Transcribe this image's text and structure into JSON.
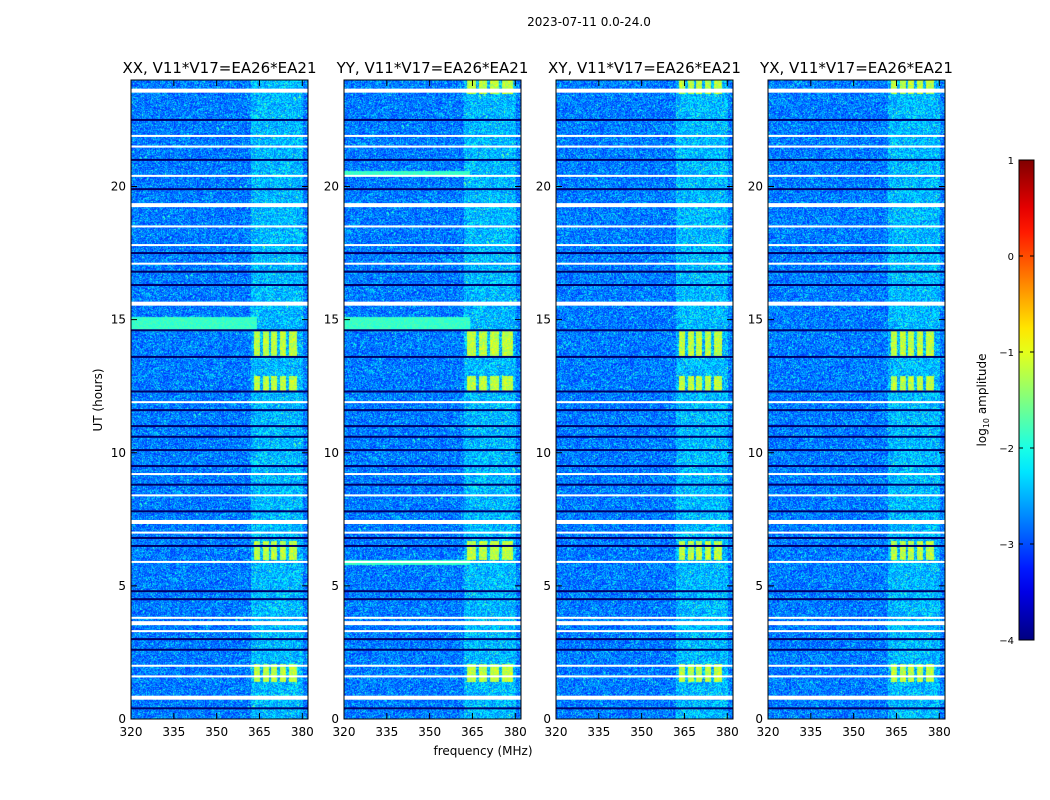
{
  "figure": {
    "suptitle": "2023-07-11 0.0-24.0",
    "ylabel": "UT (hours)",
    "xlabel": "frequency (MHz)"
  },
  "colorbar": {
    "label_main": "log",
    "label_sub": "10",
    "label_rest": " amplitude",
    "range": [
      -4,
      1
    ],
    "ticks": [
      1,
      0,
      -1,
      -2,
      -3,
      -4
    ],
    "tick_labels": [
      "1",
      "0",
      "−1",
      "−2",
      "−3",
      "−4"
    ],
    "colormap": [
      "#00007f",
      "#0000ff",
      "#007fff",
      "#00ffff",
      "#7fff7f",
      "#ffff00",
      "#ff7f00",
      "#ff0000",
      "#7f0000"
    ]
  },
  "chart_data": [
    {
      "type": "heatmap",
      "title": "XX, V11*V17=EA26*EA21",
      "xlabel": "",
      "ylabel": "UT (hours)",
      "xlim": [
        320,
        382
      ],
      "ylim": [
        0,
        24
      ],
      "xticks": [
        320,
        335,
        350,
        365,
        380
      ],
      "yticks": [
        0,
        5,
        10,
        15,
        20
      ],
      "flagged_ut": [
        0.8,
        1.6,
        2.0,
        3.3,
        3.6,
        3.8,
        5.9,
        7.0,
        7.4,
        8.4,
        9.2,
        11.9,
        15.6,
        17.1,
        17.8,
        18.5,
        19.3,
        20.4,
        21.5,
        21.9,
        23.6
      ],
      "dark_ut": [
        0.4,
        2.6,
        3.0,
        4.5,
        4.8,
        6.5,
        6.8,
        7.8,
        8.8,
        9.5,
        10.1,
        10.6,
        11.0,
        11.6,
        12.3,
        13.6,
        14.6,
        16.3,
        16.8,
        17.5,
        19.9,
        21.0,
        22.5
      ],
      "bright_ut_ranges": [
        [
          14.6,
          15.1
        ]
      ],
      "band_mhz": [
        [
          363,
          365
        ],
        [
          366,
          368
        ],
        [
          369,
          371
        ],
        [
          372,
          374
        ],
        [
          375,
          378
        ]
      ],
      "band_hot_ut": [
        [
          1.4,
          2.1
        ],
        [
          6.0,
          6.7
        ],
        [
          12.3,
          12.9
        ],
        [
          13.6,
          14.6
        ]
      ]
    },
    {
      "type": "heatmap",
      "title": "YY, V11*V17=EA26*EA21",
      "xlabel": "",
      "ylabel": "",
      "xlim": [
        320,
        382
      ],
      "ylim": [
        0,
        24
      ],
      "xticks": [
        320,
        335,
        350,
        365,
        380
      ],
      "yticks": [
        0,
        5,
        10,
        15,
        20
      ],
      "flagged_ut": [
        0.8,
        1.6,
        2.0,
        3.3,
        3.6,
        3.8,
        5.9,
        7.0,
        7.4,
        8.4,
        9.2,
        11.9,
        15.6,
        17.1,
        17.8,
        18.5,
        19.3,
        20.4,
        21.5,
        21.9,
        23.6
      ],
      "dark_ut": [
        0.4,
        2.6,
        3.0,
        4.5,
        4.8,
        6.5,
        6.8,
        7.8,
        8.8,
        9.5,
        10.1,
        10.6,
        11.0,
        11.6,
        12.3,
        13.6,
        14.6,
        16.3,
        16.8,
        17.5,
        19.9,
        21.0,
        22.5
      ],
      "bright_ut_ranges": [
        [
          14.6,
          15.1
        ],
        [
          5.8,
          6.0
        ],
        [
          20.4,
          20.6
        ]
      ],
      "band_mhz": [
        [
          363,
          366
        ],
        [
          367,
          370
        ],
        [
          371,
          374
        ],
        [
          375,
          379
        ]
      ],
      "band_hot_ut": [
        [
          1.4,
          2.1
        ],
        [
          6.0,
          6.7
        ],
        [
          12.3,
          12.9
        ],
        [
          13.6,
          14.6
        ],
        [
          23.5,
          24.0
        ]
      ]
    },
    {
      "type": "heatmap",
      "title": "XY, V11*V17=EA26*EA21",
      "xlabel": "frequency (MHz)",
      "ylabel": "",
      "xlim": [
        320,
        382
      ],
      "ylim": [
        0,
        24
      ],
      "xticks": [
        320,
        335,
        350,
        365,
        380
      ],
      "yticks": [
        0,
        5,
        10,
        15,
        20
      ],
      "flagged_ut": [
        0.8,
        1.6,
        2.0,
        3.3,
        3.6,
        3.8,
        5.9,
        7.0,
        7.4,
        8.4,
        9.2,
        11.9,
        15.6,
        17.1,
        17.8,
        18.5,
        19.3,
        20.4,
        21.5,
        21.9,
        23.6
      ],
      "dark_ut": [
        0.4,
        2.6,
        3.0,
        4.5,
        4.8,
        6.5,
        6.8,
        7.8,
        8.8,
        9.5,
        10.1,
        10.6,
        11.0,
        11.6,
        12.3,
        13.6,
        14.6,
        16.3,
        16.8,
        17.5,
        19.9,
        21.0,
        22.5
      ],
      "bright_ut_ranges": [],
      "band_mhz": [
        [
          363,
          365
        ],
        [
          366,
          368
        ],
        [
          369,
          371
        ],
        [
          372,
          374
        ],
        [
          375,
          378
        ]
      ],
      "band_hot_ut": [
        [
          1.4,
          2.1
        ],
        [
          6.0,
          6.7
        ],
        [
          12.3,
          12.9
        ],
        [
          13.6,
          14.6
        ],
        [
          23.5,
          24.0
        ]
      ]
    },
    {
      "type": "heatmap",
      "title": "YX, V11*V17=EA26*EA21",
      "xlabel": "",
      "ylabel": "",
      "xlim": [
        320,
        382
      ],
      "ylim": [
        0,
        24
      ],
      "xticks": [
        320,
        335,
        350,
        365,
        380
      ],
      "yticks": [
        0,
        5,
        10,
        15,
        20
      ],
      "flagged_ut": [
        0.8,
        1.6,
        2.0,
        3.3,
        3.6,
        3.8,
        5.9,
        7.0,
        7.4,
        8.4,
        9.2,
        11.9,
        15.6,
        17.1,
        17.8,
        18.5,
        19.3,
        20.4,
        21.5,
        21.9,
        23.6
      ],
      "dark_ut": [
        0.4,
        2.6,
        3.0,
        4.5,
        4.8,
        6.5,
        6.8,
        7.8,
        8.8,
        9.5,
        10.1,
        10.6,
        11.0,
        11.6,
        12.3,
        13.6,
        14.6,
        16.3,
        16.8,
        17.5,
        19.9,
        21.0,
        22.5
      ],
      "bright_ut_ranges": [],
      "band_mhz": [
        [
          363,
          365
        ],
        [
          366,
          368
        ],
        [
          369,
          371
        ],
        [
          372,
          374
        ],
        [
          375,
          378
        ]
      ],
      "band_hot_ut": [
        [
          1.4,
          2.1
        ],
        [
          6.0,
          6.7
        ],
        [
          12.3,
          12.9
        ],
        [
          13.6,
          14.6
        ],
        [
          23.5,
          24.0
        ]
      ]
    }
  ]
}
